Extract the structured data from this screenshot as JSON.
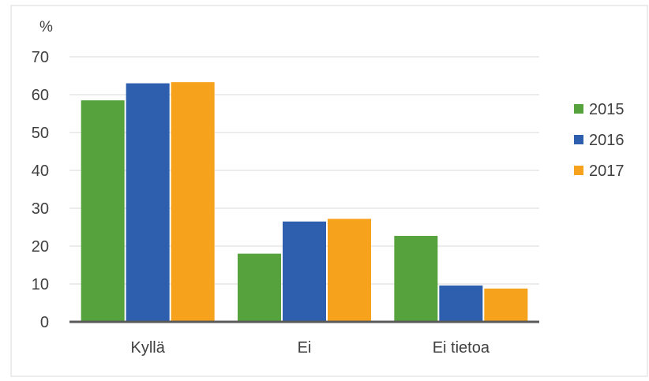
{
  "chart_data": {
    "type": "bar",
    "title": "",
    "xlabel": "",
    "ylabel": "%",
    "ylim": [
      0,
      70
    ],
    "yticks": [
      0,
      10,
      20,
      30,
      40,
      50,
      60,
      70
    ],
    "grid": true,
    "legend_position": "right",
    "categories": [
      "Kyllä",
      "Ei",
      "Ei tietoa"
    ],
    "series": [
      {
        "name": "2015",
        "color": "#56a23c",
        "values": [
          58.5,
          18,
          22.7
        ]
      },
      {
        "name": "2016",
        "color": "#2e5fae",
        "values": [
          63,
          26.5,
          9.6
        ]
      },
      {
        "name": "2017",
        "color": "#f7a21c",
        "values": [
          63.3,
          27.2,
          8.8
        ]
      }
    ]
  }
}
